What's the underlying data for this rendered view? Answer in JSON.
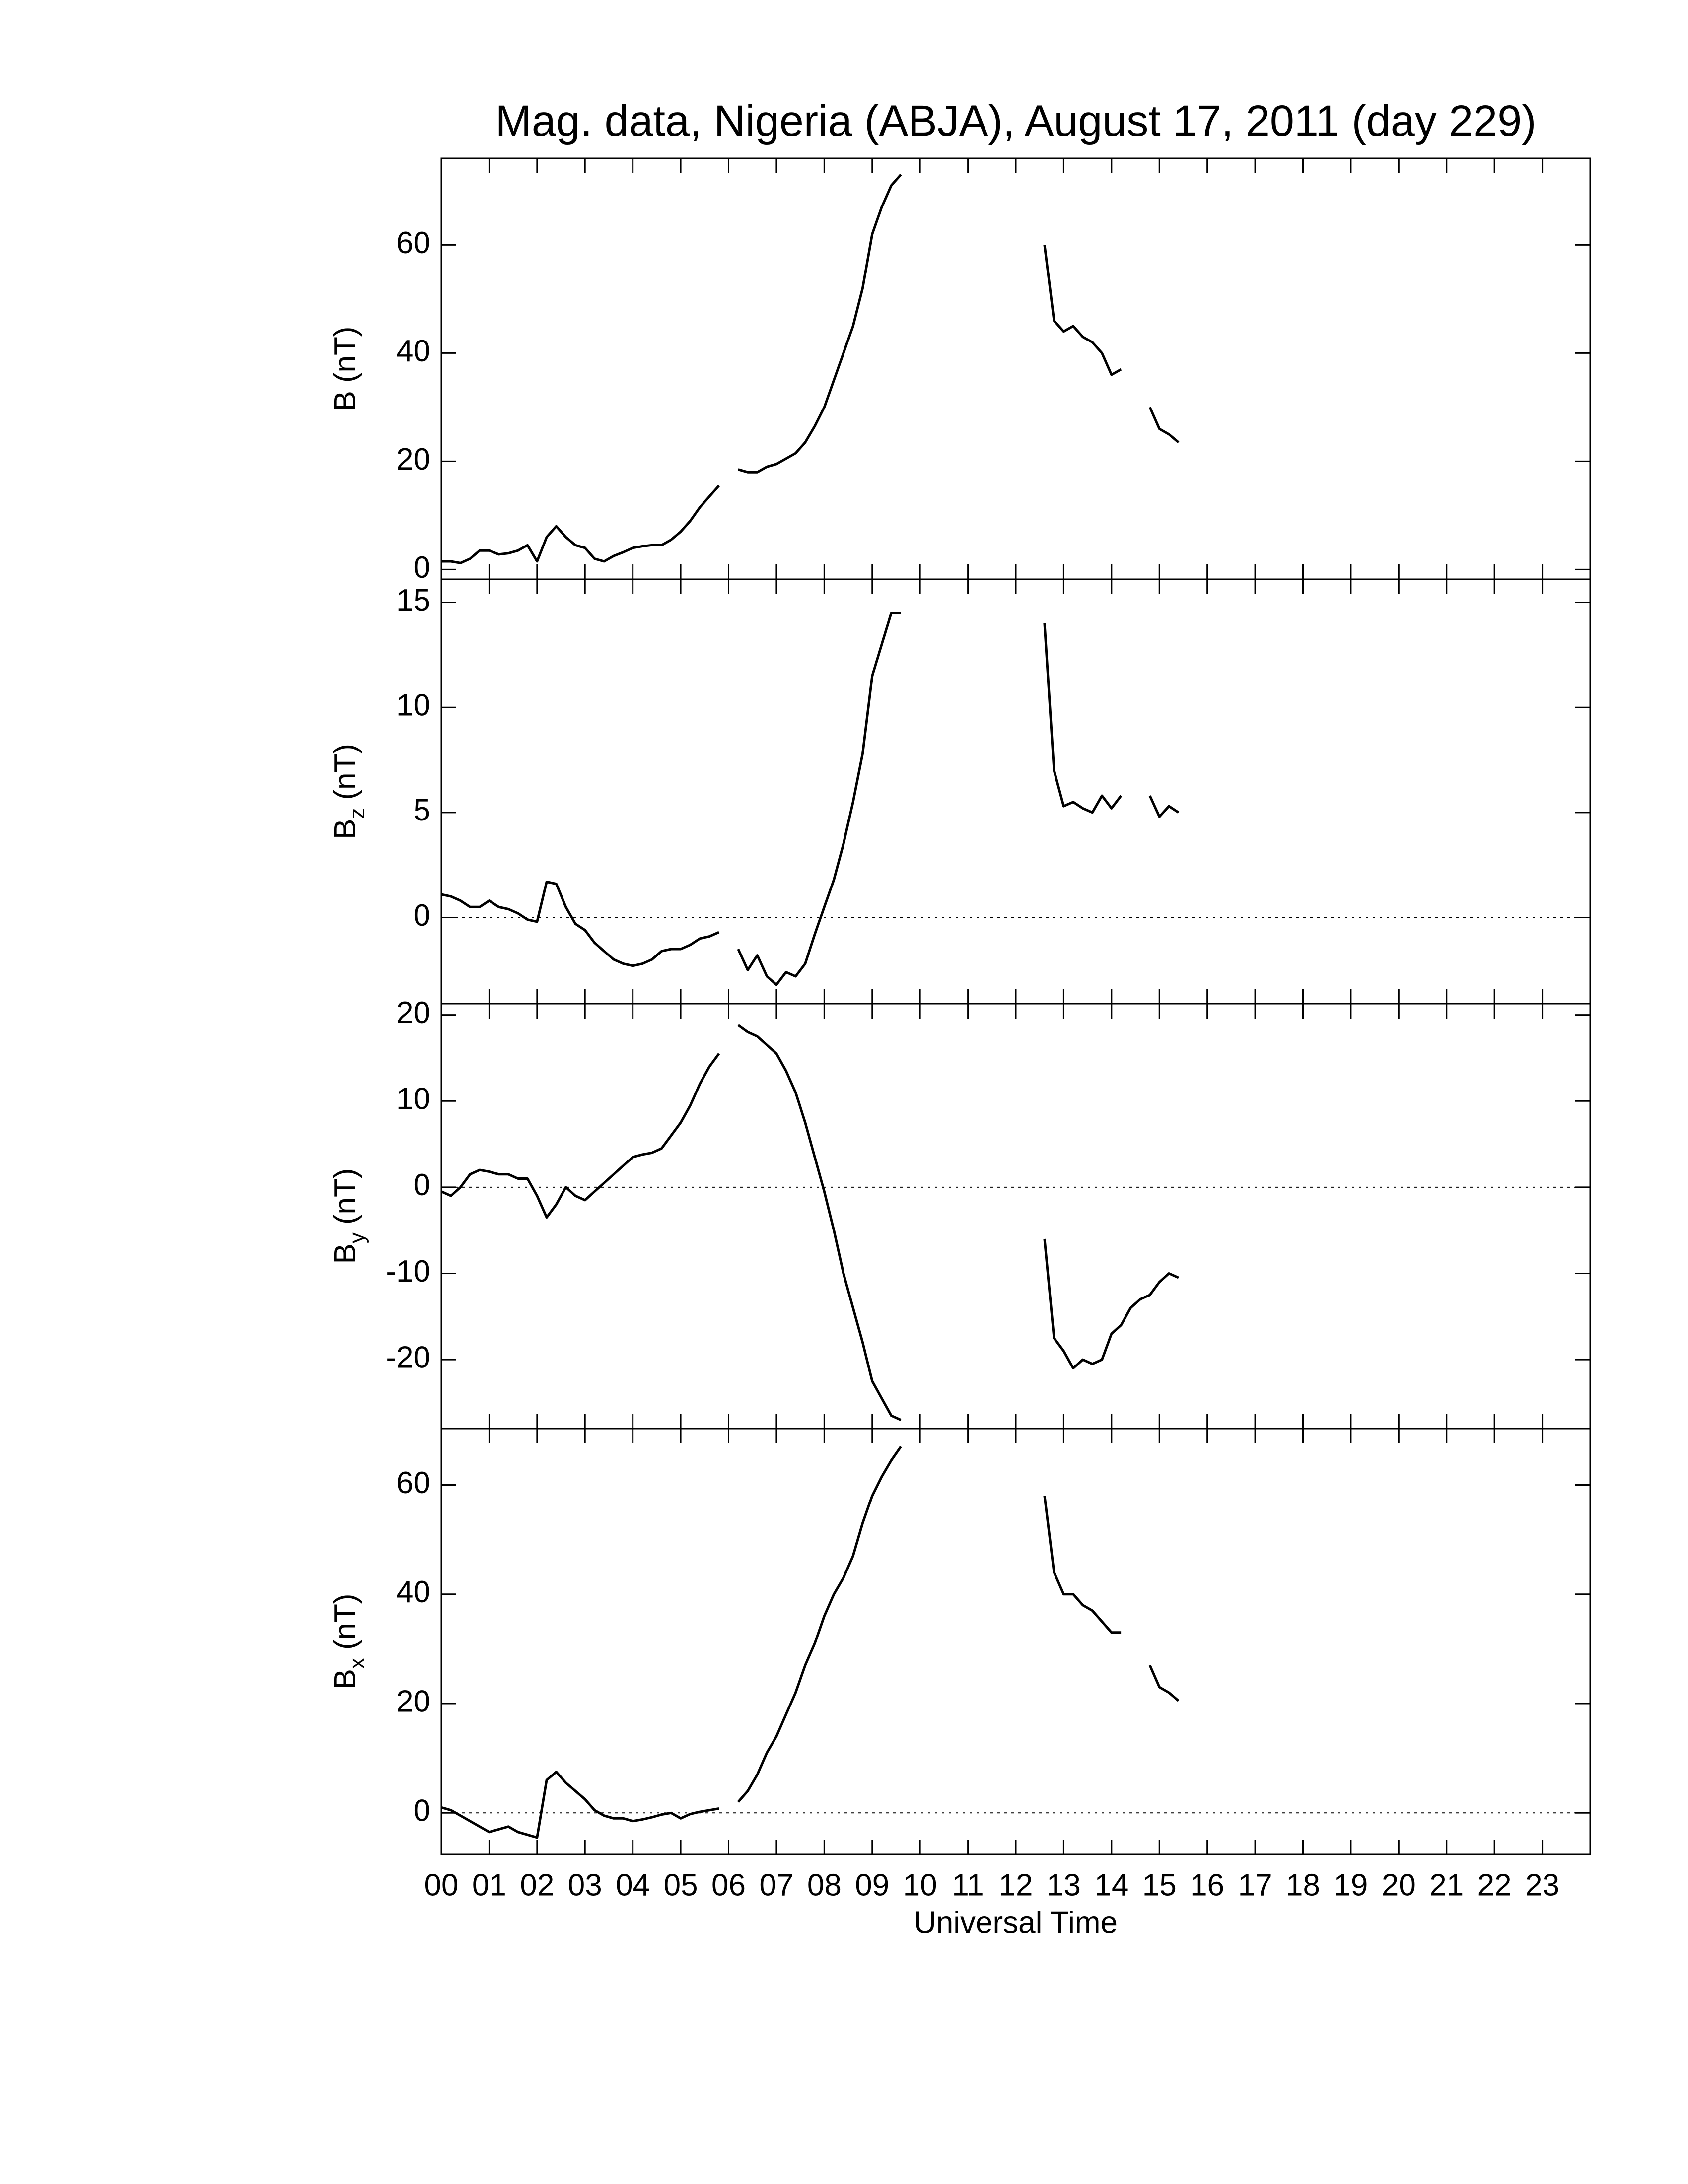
{
  "chart_data": [
    {
      "type": "line",
      "title": "Mag. data, Nigeria (ABJA), August 17, 2011 (day 229)",
      "ylabel": "B",
      "ylabel_unit": "(nT)",
      "color": "#000000",
      "zero_line": false,
      "xlim": [
        0,
        24
      ],
      "xticks": [
        0,
        1,
        2,
        3,
        4,
        5,
        6,
        7,
        8,
        9,
        10,
        11,
        12,
        13,
        14,
        15,
        16,
        17,
        18,
        19,
        20,
        21,
        22,
        23
      ],
      "ylim": [
        -1.8,
        76
      ],
      "yticks": [
        0,
        20,
        40,
        60
      ],
      "x": [
        0,
        0.2,
        0.4,
        0.6,
        0.8,
        1,
        1.2,
        1.4,
        1.6,
        1.8,
        2,
        2.2,
        2.4,
        2.6,
        2.8,
        3,
        3.2,
        3.4,
        3.6,
        3.8,
        4,
        4.2,
        4.4,
        4.6,
        4.8,
        5,
        5.2,
        5.4,
        5.6,
        5.8,
        6,
        6.2,
        6.4,
        6.6,
        6.8,
        7,
        7.2,
        7.4,
        7.6,
        7.8,
        8,
        8.2,
        8.4,
        8.6,
        8.8,
        9,
        9.2,
        9.4,
        9.6,
        9.8,
        10,
        10.2,
        10.4,
        10.6,
        10.8,
        11,
        11.2,
        11.4,
        11.6,
        11.8,
        12,
        12.2,
        12.4,
        12.6,
        12.8,
        13,
        13.2,
        13.4,
        13.6,
        13.8,
        14,
        14.2,
        14.4,
        14.6,
        14.8,
        15,
        15.2,
        15.4
      ],
      "values": [
        1.5,
        1.5,
        1.2,
        2,
        3.5,
        3.5,
        2.8,
        3,
        3.5,
        4.5,
        1.5,
        6,
        8,
        6,
        4.5,
        4,
        2,
        1.5,
        2.5,
        3.2,
        4,
        4.3,
        4.5,
        4.5,
        5.5,
        7,
        9,
        11.5,
        13.5,
        15.5,
        null,
        18.5,
        18,
        18,
        19,
        19.5,
        20.5,
        21.5,
        23.5,
        26.5,
        30,
        35,
        40,
        45,
        52,
        62,
        67,
        71,
        73,
        null,
        null,
        null,
        null,
        null,
        null,
        null,
        null,
        null,
        null,
        null,
        null,
        null,
        null,
        60,
        46,
        44,
        45,
        43,
        42,
        40,
        36,
        37,
        null,
        null,
        30,
        26,
        25,
        23.5
      ]
    },
    {
      "type": "line",
      "ylabel": "B",
      "ylabel_sub": "z",
      "ylabel_unit": "(nT)",
      "color": "#000000",
      "zero_line": true,
      "xlim": [
        0,
        24
      ],
      "xticks": [
        0,
        1,
        2,
        3,
        4,
        5,
        6,
        7,
        8,
        9,
        10,
        11,
        12,
        13,
        14,
        15,
        16,
        17,
        18,
        19,
        20,
        21,
        22,
        23
      ],
      "ylim": [
        -4.1,
        16.1
      ],
      "yticks": [
        0,
        5,
        10,
        15
      ],
      "x": [
        0,
        0.2,
        0.4,
        0.6,
        0.8,
        1,
        1.2,
        1.4,
        1.6,
        1.8,
        2,
        2.2,
        2.4,
        2.6,
        2.8,
        3,
        3.2,
        3.4,
        3.6,
        3.8,
        4,
        4.2,
        4.4,
        4.6,
        4.8,
        5,
        5.2,
        5.4,
        5.6,
        5.8,
        6,
        6.2,
        6.4,
        6.6,
        6.8,
        7,
        7.2,
        7.4,
        7.6,
        7.8,
        8,
        8.2,
        8.4,
        8.6,
        8.8,
        9,
        9.2,
        9.4,
        9.6,
        9.8,
        10,
        10.2,
        10.4,
        10.6,
        10.8,
        11,
        11.2,
        11.4,
        11.6,
        11.8,
        12,
        12.2,
        12.4,
        12.6,
        12.8,
        13,
        13.2,
        13.4,
        13.6,
        13.8,
        14,
        14.2,
        14.4,
        14.6,
        14.8,
        15,
        15.2,
        15.4
      ],
      "values": [
        1.1,
        1.0,
        0.8,
        0.5,
        0.5,
        0.8,
        0.5,
        0.4,
        0.2,
        -0.1,
        -0.2,
        1.7,
        1.6,
        0.5,
        -0.3,
        -0.6,
        -1.2,
        -1.6,
        -2,
        -2.2,
        -2.3,
        -2.2,
        -2,
        -1.6,
        -1.5,
        -1.5,
        -1.3,
        -1,
        -0.9,
        -0.7,
        null,
        -1.5,
        -2.5,
        -1.8,
        -2.8,
        -3.2,
        -2.6,
        -2.8,
        -2.2,
        -0.8,
        0.5,
        1.8,
        3.5,
        5.5,
        7.8,
        11.5,
        13,
        14.5,
        14.5,
        null,
        null,
        null,
        null,
        null,
        null,
        null,
        null,
        null,
        null,
        null,
        null,
        null,
        null,
        14,
        7,
        5.3,
        5.5,
        5.2,
        5,
        5.8,
        5.2,
        5.8,
        null,
        null,
        5.8,
        4.8,
        5.3,
        5
      ]
    },
    {
      "type": "line",
      "ylabel": "B",
      "ylabel_sub": "y",
      "ylabel_unit": "(nT)",
      "color": "#000000",
      "zero_line": true,
      "xlim": [
        0,
        24
      ],
      "xticks": [
        0,
        1,
        2,
        3,
        4,
        5,
        6,
        7,
        8,
        9,
        10,
        11,
        12,
        13,
        14,
        15,
        16,
        17,
        18,
        19,
        20,
        21,
        22,
        23
      ],
      "ylim": [
        -28,
        21.3
      ],
      "yticks": [
        -20,
        -10,
        0,
        10,
        20
      ],
      "x": [
        0,
        0.2,
        0.4,
        0.6,
        0.8,
        1,
        1.2,
        1.4,
        1.6,
        1.8,
        2,
        2.2,
        2.4,
        2.6,
        2.8,
        3,
        3.2,
        3.4,
        3.6,
        3.8,
        4,
        4.2,
        4.4,
        4.6,
        4.8,
        5,
        5.2,
        5.4,
        5.6,
        5.8,
        6,
        6.2,
        6.4,
        6.6,
        6.8,
        7,
        7.2,
        7.4,
        7.6,
        7.8,
        8,
        8.2,
        8.4,
        8.6,
        8.8,
        9,
        9.2,
        9.4,
        9.6,
        9.8,
        10,
        10.2,
        10.4,
        10.6,
        10.8,
        11,
        11.2,
        11.4,
        11.6,
        11.8,
        12,
        12.2,
        12.4,
        12.6,
        12.8,
        13,
        13.2,
        13.4,
        13.6,
        13.8,
        14,
        14.2,
        14.4,
        14.6,
        14.8,
        15,
        15.2,
        15.4
      ],
      "values": [
        -0.5,
        -1,
        0,
        1.5,
        2,
        1.8,
        1.5,
        1.5,
        1,
        1,
        -1,
        -3.5,
        -2,
        0,
        -1,
        -1.5,
        -0.5,
        0.5,
        1.5,
        2.5,
        3.5,
        3.8,
        4,
        4.5,
        6,
        7.5,
        9.5,
        12,
        14,
        15.5,
        null,
        18.8,
        18,
        17.5,
        16.5,
        15.5,
        13.5,
        11,
        7.5,
        3.5,
        -0.5,
        -5,
        -10,
        -14,
        -18,
        -22.5,
        -24.5,
        -26.5,
        -27,
        null,
        null,
        null,
        null,
        null,
        null,
        null,
        null,
        null,
        null,
        null,
        null,
        null,
        null,
        -6,
        -17.5,
        -19,
        -21,
        -20,
        -20.5,
        -20,
        -17,
        -16,
        -14,
        -13,
        -12.5,
        -11,
        -10,
        -10.5
      ]
    },
    {
      "type": "line",
      "ylabel": "B",
      "ylabel_sub": "x",
      "ylabel_unit": "(nT)",
      "color": "#000000",
      "zero_line": true,
      "xlabel": "Universal Time",
      "xlim": [
        0,
        24
      ],
      "xticks": [
        {
          "value": 0,
          "label": "00"
        },
        {
          "value": 1,
          "label": "01"
        },
        {
          "value": 2,
          "label": "02"
        },
        {
          "value": 3,
          "label": "03"
        },
        {
          "value": 4,
          "label": "04"
        },
        {
          "value": 5,
          "label": "05"
        },
        {
          "value": 6,
          "label": "06"
        },
        {
          "value": 7,
          "label": "07"
        },
        {
          "value": 8,
          "label": "08"
        },
        {
          "value": 9,
          "label": "09"
        },
        {
          "value": 10,
          "label": "10"
        },
        {
          "value": 11,
          "label": "11"
        },
        {
          "value": 12,
          "label": "12"
        },
        {
          "value": 13,
          "label": "13"
        },
        {
          "value": 14,
          "label": "14"
        },
        {
          "value": 15,
          "label": "15"
        },
        {
          "value": 16,
          "label": "16"
        },
        {
          "value": 17,
          "label": "17"
        },
        {
          "value": 18,
          "label": "18"
        },
        {
          "value": 19,
          "label": "19"
        },
        {
          "value": 20,
          "label": "20"
        },
        {
          "value": 21,
          "label": "21"
        },
        {
          "value": 22,
          "label": "22"
        },
        {
          "value": 23,
          "label": "23"
        }
      ],
      "ylim": [
        -7.6,
        70.3
      ],
      "yticks": [
        0,
        20,
        40,
        60
      ],
      "x": [
        0,
        0.2,
        0.4,
        0.6,
        0.8,
        1,
        1.2,
        1.4,
        1.6,
        1.8,
        2,
        2.2,
        2.4,
        2.6,
        2.8,
        3,
        3.2,
        3.4,
        3.6,
        3.8,
        4,
        4.2,
        4.4,
        4.6,
        4.8,
        5,
        5.2,
        5.4,
        5.6,
        5.8,
        6,
        6.2,
        6.4,
        6.6,
        6.8,
        7,
        7.2,
        7.4,
        7.6,
        7.8,
        8,
        8.2,
        8.4,
        8.6,
        8.8,
        9,
        9.2,
        9.4,
        9.6,
        9.8,
        10,
        10.2,
        10.4,
        10.6,
        10.8,
        11,
        11.2,
        11.4,
        11.6,
        11.8,
        12,
        12.2,
        12.4,
        12.6,
        12.8,
        13,
        13.2,
        13.4,
        13.6,
        13.8,
        14,
        14.2,
        14.4,
        14.6,
        14.8,
        15,
        15.2,
        15.4
      ],
      "values": [
        1,
        0.5,
        -0.5,
        -1.5,
        -2.5,
        -3.5,
        -3,
        -2.5,
        -3.5,
        -4,
        -4.5,
        6,
        7.5,
        5.5,
        4,
        2.5,
        0.5,
        -0.5,
        -1,
        -1,
        -1.5,
        -1.2,
        -0.8,
        -0.3,
        0,
        -1,
        -0.2,
        0.2,
        0.5,
        0.8,
        null,
        2,
        4,
        7,
        11,
        14,
        18,
        22,
        27,
        31,
        36,
        40,
        43,
        47,
        53,
        58,
        61.5,
        64.5,
        67,
        null,
        null,
        null,
        null,
        null,
        null,
        null,
        null,
        null,
        null,
        null,
        null,
        null,
        null,
        58,
        44,
        40,
        40,
        38,
        37,
        35,
        33,
        33,
        null,
        null,
        27,
        23,
        22,
        20.5
      ]
    }
  ]
}
